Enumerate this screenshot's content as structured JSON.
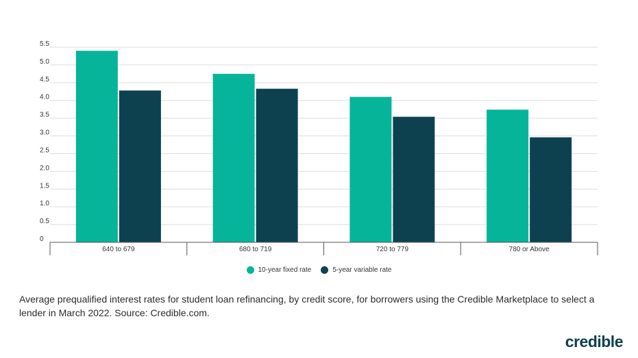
{
  "chart_data": {
    "type": "bar",
    "categories": [
      "640 to 679",
      "680 to 719",
      "720 to 779",
      "780 or Above"
    ],
    "series": [
      {
        "name": "10-year fixed rate",
        "color": "#06b49a",
        "values": [
          5.4,
          4.75,
          4.1,
          3.74
        ]
      },
      {
        "name": "5-year variable rate",
        "color": "#0e4150",
        "values": [
          4.28,
          4.33,
          3.54,
          2.96
        ]
      }
    ],
    "yticks": [
      "0",
      "0.5",
      "1.0",
      "1.5",
      "2.0",
      "2.5",
      "3.0",
      "3.5",
      "4.0",
      "4.5",
      "5.0",
      "5.5"
    ],
    "ylim": [
      0,
      5.5
    ],
    "grid": true,
    "legend_position": "bottom-center"
  },
  "caption": "Average prequalified interest rates for student loan refinancing, by credit score, for borrowers using the Credible Marketplace to select a lender in March 2022. Source: Credible.com.",
  "brand": "credible"
}
